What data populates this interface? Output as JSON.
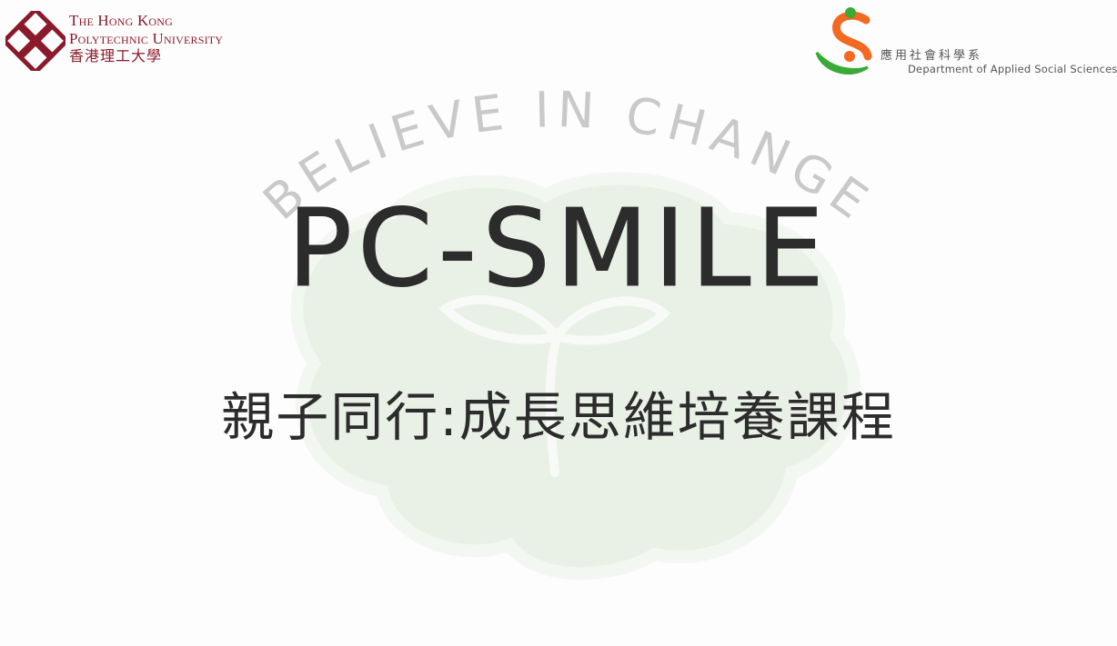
{
  "slide": {
    "slogan": "BELIEVE IN CHANGE",
    "title": "PC-SMILE",
    "subtitle": "親子同行:成長思維培養課程"
  },
  "polyu_logo": {
    "line1": "The Hong Kong",
    "line2": "Polytechnic University",
    "line3": "香港理工大學",
    "brand_color": "#8b1a2b"
  },
  "apss_logo": {
    "chinese": "應用社會科學系",
    "english": "Department of Applied Social Sciences",
    "colors": {
      "orange": "#f26a21",
      "green": "#3aa935"
    }
  },
  "illustration": {
    "icon": "brain-sprout-icon",
    "color": "#e6efe3"
  }
}
